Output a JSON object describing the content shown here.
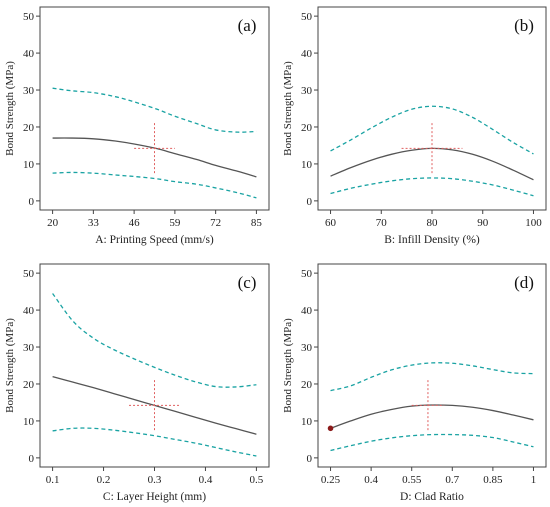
{
  "colors": {
    "fit": "#555555",
    "band": "#1aa3a3",
    "cross": "#e06060",
    "marker": "#8b1a1a"
  },
  "chart_data": [
    {
      "type": "line",
      "panel_label": "(a)",
      "xlabel": "A: Printing Speed (mm/s)",
      "ylabel": "Bond Strength (MPa)",
      "xlim": [
        20,
        85
      ],
      "ylim": [
        0,
        50
      ],
      "xticks": [
        20,
        33,
        46,
        59,
        72,
        85
      ],
      "xtick_labels": [
        "20",
        "33",
        "46",
        "59",
        "72",
        "85"
      ],
      "yticks": [
        0,
        10,
        20,
        30,
        40,
        50
      ],
      "ytick_labels": [
        "0",
        "10",
        "20",
        "30",
        "40",
        "50"
      ],
      "x": [
        20,
        26,
        33,
        40,
        46,
        53,
        59,
        66,
        72,
        79,
        85
      ],
      "series": [
        {
          "role": "fit",
          "values": [
            17.0,
            17.0,
            16.8,
            16.2,
            15.4,
            14.2,
            12.8,
            11.2,
            9.6,
            8.0,
            6.5
          ]
        },
        {
          "role": "upper",
          "values": [
            30.5,
            29.8,
            29.3,
            28.2,
            26.8,
            24.9,
            22.9,
            20.9,
            19.2,
            18.6,
            18.8
          ]
        },
        {
          "role": "lower",
          "values": [
            7.5,
            7.7,
            7.5,
            7.0,
            6.6,
            6.0,
            5.2,
            4.5,
            3.5,
            2.2,
            0.8
          ]
        }
      ],
      "design_point": {
        "x": 52.5,
        "y": 14.2,
        "x_range": [
          46,
          59
        ],
        "y_range": [
          7.5,
          21.5
        ]
      }
    },
    {
      "type": "line",
      "panel_label": "(b)",
      "xlabel": "B: Infill Density (%)",
      "ylabel": "Bond Strength (MPa)",
      "xlim": [
        60,
        100
      ],
      "ylim": [
        0,
        50
      ],
      "xticks": [
        60,
        70,
        80,
        90,
        100
      ],
      "xtick_labels": [
        "60",
        "70",
        "80",
        "90",
        "100"
      ],
      "yticks": [
        0,
        10,
        20,
        30,
        40,
        50
      ],
      "ytick_labels": [
        "0",
        "10",
        "20",
        "30",
        "40",
        "50"
      ],
      "x": [
        60,
        64,
        68,
        72,
        76,
        80,
        84,
        88,
        92,
        96,
        100
      ],
      "series": [
        {
          "role": "fit",
          "values": [
            6.7,
            9.0,
            11.0,
            12.6,
            13.7,
            14.2,
            13.8,
            12.6,
            10.7,
            8.3,
            5.7
          ]
        },
        {
          "role": "upper",
          "values": [
            13.5,
            16.5,
            19.7,
            22.6,
            24.8,
            25.6,
            24.9,
            22.6,
            19.3,
            15.8,
            12.7
          ]
        },
        {
          "role": "lower",
          "values": [
            2.0,
            3.4,
            4.5,
            5.4,
            6.0,
            6.2,
            6.0,
            5.3,
            4.3,
            2.9,
            1.4
          ]
        }
      ],
      "design_point": {
        "x": 80,
        "y": 14.2,
        "x_range": [
          74,
          86
        ],
        "y_range": [
          7.5,
          21.5
        ]
      }
    },
    {
      "type": "line",
      "panel_label": "(c)",
      "xlabel": "C: Layer Height (mm)",
      "ylabel": "Bond Strength (MPa)",
      "xlim": [
        0.1,
        0.5
      ],
      "ylim": [
        0,
        50
      ],
      "xticks": [
        0.1,
        0.2,
        0.3,
        0.4,
        0.5
      ],
      "xtick_labels": [
        "0.1",
        "0.2",
        "0.3",
        "0.4",
        "0.5"
      ],
      "yticks": [
        0,
        10,
        20,
        30,
        40,
        50
      ],
      "ytick_labels": [
        "0",
        "10",
        "20",
        "30",
        "40",
        "50"
      ],
      "x": [
        0.1,
        0.14,
        0.18,
        0.22,
        0.26,
        0.3,
        0.34,
        0.38,
        0.42,
        0.46,
        0.5
      ],
      "series": [
        {
          "role": "fit",
          "values": [
            22.0,
            20.5,
            19.0,
            17.4,
            15.8,
            14.2,
            12.6,
            11.0,
            9.4,
            7.9,
            6.4
          ]
        },
        {
          "role": "upper",
          "values": [
            44.5,
            37.0,
            32.4,
            29.3,
            26.8,
            24.5,
            22.4,
            20.6,
            19.3,
            19.2,
            19.8
          ]
        },
        {
          "role": "lower",
          "values": [
            7.3,
            8.0,
            8.0,
            7.5,
            6.8,
            6.0,
            5.0,
            4.0,
            2.8,
            1.6,
            0.5
          ]
        }
      ],
      "design_point": {
        "x": 0.3,
        "y": 14.2,
        "x_range": [
          0.25,
          0.35
        ],
        "y_range": [
          7.5,
          21.5
        ]
      }
    },
    {
      "type": "line",
      "panel_label": "(d)",
      "xlabel": "D: Clad Ratio",
      "ylabel": "Bond Strength (MPa)",
      "xlim": [
        0.25,
        1.0
      ],
      "ylim": [
        0,
        50
      ],
      "xticks": [
        0.25,
        0.4,
        0.55,
        0.7,
        0.85,
        1.0
      ],
      "xtick_labels": [
        "0.25",
        "0.4",
        "0.55",
        "0.7",
        "0.85",
        "1"
      ],
      "yticks": [
        0,
        10,
        20,
        30,
        40,
        50
      ],
      "ytick_labels": [
        "0",
        "10",
        "20",
        "30",
        "40",
        "50"
      ],
      "x": [
        0.25,
        0.325,
        0.4,
        0.475,
        0.55,
        0.625,
        0.7,
        0.775,
        0.85,
        0.925,
        1.0
      ],
      "series": [
        {
          "role": "fit",
          "values": [
            8.0,
            10.0,
            11.8,
            13.1,
            14.0,
            14.3,
            14.2,
            13.7,
            12.8,
            11.6,
            10.3
          ]
        },
        {
          "role": "upper",
          "values": [
            18.2,
            19.5,
            21.8,
            23.8,
            25.1,
            25.7,
            25.6,
            24.9,
            23.9,
            23.0,
            22.8
          ]
        },
        {
          "role": "lower",
          "values": [
            2.0,
            3.3,
            4.5,
            5.4,
            6.0,
            6.3,
            6.3,
            6.1,
            5.5,
            4.3,
            3.0
          ]
        }
      ],
      "design_point": {
        "x": 0.61,
        "y": 14.2,
        "x_range": [
          0.55,
          0.67
        ],
        "y_range": [
          7.5,
          21.5
        ]
      },
      "marker_point": {
        "x": 0.25,
        "y": 8.0
      }
    }
  ]
}
